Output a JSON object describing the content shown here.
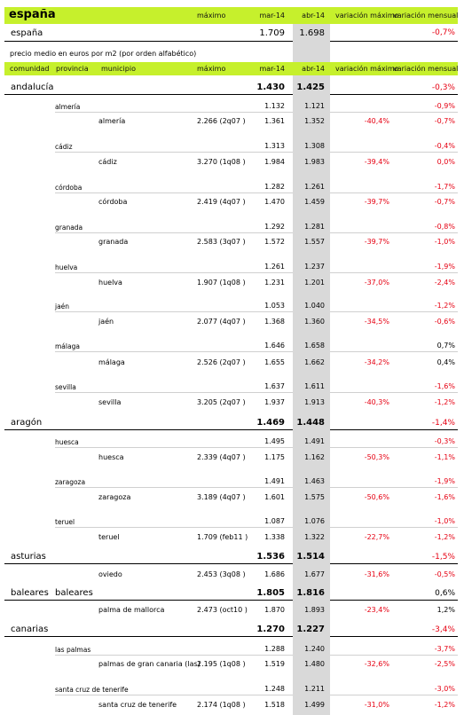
{
  "top_header": {
    "title": "españa",
    "h_maximo": "máximo",
    "h_mar": "mar-14",
    "h_abr": "abr-14",
    "h_var_max": "variación máximo",
    "h_var_men": "variación mensual"
  },
  "spain_row": {
    "label": "españa",
    "mar": "1.709",
    "abr": "1.698",
    "var_men": "-0,7%"
  },
  "subtitle": "precio medio en euros por m2 (por orden alfabético)",
  "table_header": {
    "comunidad": "comunidad",
    "provincia": "provincia",
    "municipio": "municipio",
    "maximo": "máximo",
    "mar": "mar-14",
    "abr": "abr-14",
    "var_max": "variación máximo",
    "var_men": "variación mensual"
  },
  "rows": [
    {
      "level": "comunidad",
      "label": "andalucía",
      "mar": "1.430",
      "abr": "1.425",
      "var_men": "-0,3%",
      "var_men_neg": true
    },
    {
      "level": "provincia",
      "label": "almería",
      "mar": "1.132",
      "abr": "1.121",
      "var_men": "-0,9%",
      "var_men_neg": true
    },
    {
      "level": "municipio",
      "label": "almería",
      "maximo": "2.266 (2q07 )",
      "mar": "1.361",
      "abr": "1.352",
      "var_max": "-40,4%",
      "var_men": "-0,7%",
      "var_men_neg": true
    },
    {
      "level": "provincia",
      "label": "cádiz",
      "mar": "1.313",
      "abr": "1.308",
      "var_men": "-0,4%",
      "var_men_neg": true
    },
    {
      "level": "municipio",
      "label": "cádiz",
      "maximo": "3.270 (1q08 )",
      "mar": "1.984",
      "abr": "1.983",
      "var_max": "-39,4%",
      "var_men": "0,0%",
      "var_men_neg": true
    },
    {
      "level": "provincia",
      "label": "córdoba",
      "mar": "1.282",
      "abr": "1.261",
      "var_men": "-1,7%",
      "var_men_neg": true
    },
    {
      "level": "municipio",
      "label": "córdoba",
      "maximo": "2.419 (4q07 )",
      "mar": "1.470",
      "abr": "1.459",
      "var_max": "-39,7%",
      "var_men": "-0,7%",
      "var_men_neg": true
    },
    {
      "level": "provincia",
      "label": "granada",
      "mar": "1.292",
      "abr": "1.281",
      "var_men": "-0,8%",
      "var_men_neg": true
    },
    {
      "level": "municipio",
      "label": "granada",
      "maximo": "2.583 (3q07 )",
      "mar": "1.572",
      "abr": "1.557",
      "var_max": "-39,7%",
      "var_men": "-1,0%",
      "var_men_neg": true
    },
    {
      "level": "provincia",
      "label": "huelva",
      "mar": "1.261",
      "abr": "1.237",
      "var_men": "-1,9%",
      "var_men_neg": true
    },
    {
      "level": "municipio",
      "label": "huelva",
      "maximo": "1.907 (1q08 )",
      "mar": "1.231",
      "abr": "1.201",
      "var_max": "-37,0%",
      "var_men": "-2,4%",
      "var_men_neg": true
    },
    {
      "level": "provincia",
      "label": "jaén",
      "mar": "1.053",
      "abr": "1.040",
      "var_men": "-1,2%",
      "var_men_neg": true
    },
    {
      "level": "municipio",
      "label": "jaén",
      "maximo": "2.077 (4q07 )",
      "mar": "1.368",
      "abr": "1.360",
      "var_max": "-34,5%",
      "var_men": "-0,6%",
      "var_men_neg": true
    },
    {
      "level": "provincia",
      "label": "málaga",
      "mar": "1.646",
      "abr": "1.658",
      "var_men": "0,7%",
      "var_men_neg": false
    },
    {
      "level": "municipio",
      "label": "málaga",
      "maximo": "2.526 (2q07 )",
      "mar": "1.655",
      "abr": "1.662",
      "var_max": "-34,2%",
      "var_men": "0,4%",
      "var_men_neg": false
    },
    {
      "level": "provincia",
      "label": "sevilla",
      "mar": "1.637",
      "abr": "1.611",
      "var_men": "-1,6%",
      "var_men_neg": true
    },
    {
      "level": "municipio",
      "label": "sevilla",
      "maximo": "3.205 (2q07 )",
      "mar": "1.937",
      "abr": "1.913",
      "var_max": "-40,3%",
      "var_men": "-1,2%",
      "var_men_neg": true
    },
    {
      "level": "comunidad",
      "label": "aragón",
      "mar": "1.469",
      "abr": "1.448",
      "var_men": "-1,4%",
      "var_men_neg": true
    },
    {
      "level": "provincia",
      "label": "huesca",
      "mar": "1.495",
      "abr": "1.491",
      "var_men": "-0,3%",
      "var_men_neg": true
    },
    {
      "level": "municipio",
      "label": "huesca",
      "maximo": "2.339 (4q07 )",
      "mar": "1.175",
      "abr": "1.162",
      "var_max": "-50,3%",
      "var_men": "-1,1%",
      "var_men_neg": true
    },
    {
      "level": "provincia",
      "label": "zaragoza",
      "mar": "1.491",
      "abr": "1.463",
      "var_men": "-1,9%",
      "var_men_neg": true
    },
    {
      "level": "municipio",
      "label": "zaragoza",
      "maximo": "3.189 (4q07 )",
      "mar": "1.601",
      "abr": "1.575",
      "var_max": "-50,6%",
      "var_men": "-1,6%",
      "var_men_neg": true
    },
    {
      "level": "provincia",
      "label": "teruel",
      "mar": "1.087",
      "abr": "1.076",
      "var_men": "-1,0%",
      "var_men_neg": true
    },
    {
      "level": "municipio",
      "label": "teruel",
      "maximo": "1.709 (feb11 )",
      "mar": "1.338",
      "abr": "1.322",
      "var_max": "-22,7%",
      "var_men": "-1,2%",
      "var_men_neg": true
    },
    {
      "level": "comunidad",
      "label": "asturias",
      "mar": "1.536",
      "abr": "1.514",
      "var_men": "-1,5%",
      "var_men_neg": true
    },
    {
      "level": "municipio",
      "label": "oviedo",
      "maximo": "2.453 (3q08 )",
      "mar": "1.686",
      "abr": "1.677",
      "var_max": "-31,6%",
      "var_men": "-0,5%",
      "var_men_neg": true
    },
    {
      "level": "comunidad",
      "label": "baleares",
      "provincia": "baleares",
      "mar": "1.805",
      "abr": "1.816",
      "var_men": "0,6%",
      "var_men_neg": false
    },
    {
      "level": "municipio",
      "label": "palma de mallorca",
      "maximo": "2.473 (oct10 )",
      "mar": "1.870",
      "abr": "1.893",
      "var_max": "-23,4%",
      "var_men": "1,2%",
      "var_men_neg": false
    },
    {
      "level": "comunidad",
      "label": "canarias",
      "mar": "1.270",
      "abr": "1.227",
      "var_men": "-3,4%",
      "var_men_neg": true
    },
    {
      "level": "provincia",
      "label": "las palmas",
      "mar": "1.288",
      "abr": "1.240",
      "var_men": "-3,7%",
      "var_men_neg": true
    },
    {
      "level": "municipio",
      "label": "palmas de gran canaria (las)",
      "maximo": "2.195 (1q08 )",
      "mar": "1.519",
      "abr": "1.480",
      "var_max": "-32,6%",
      "var_men": "-2,5%",
      "var_men_neg": true
    },
    {
      "level": "provincia",
      "label": "santa cruz de tenerife",
      "mar": "1.248",
      "abr": "1.211",
      "var_men": "-3,0%",
      "var_men_neg": true
    },
    {
      "level": "municipio",
      "label": "santa cruz de tenerife",
      "maximo": "2.174 (1q08 )",
      "mar": "1.518",
      "abr": "1.499",
      "var_max": "-31,0%",
      "var_men": "-1,2%",
      "var_men_neg": true
    }
  ],
  "colors": {
    "band": "#c6f02c",
    "gray_col": "#d9d9d9",
    "negative": "#e60012"
  }
}
